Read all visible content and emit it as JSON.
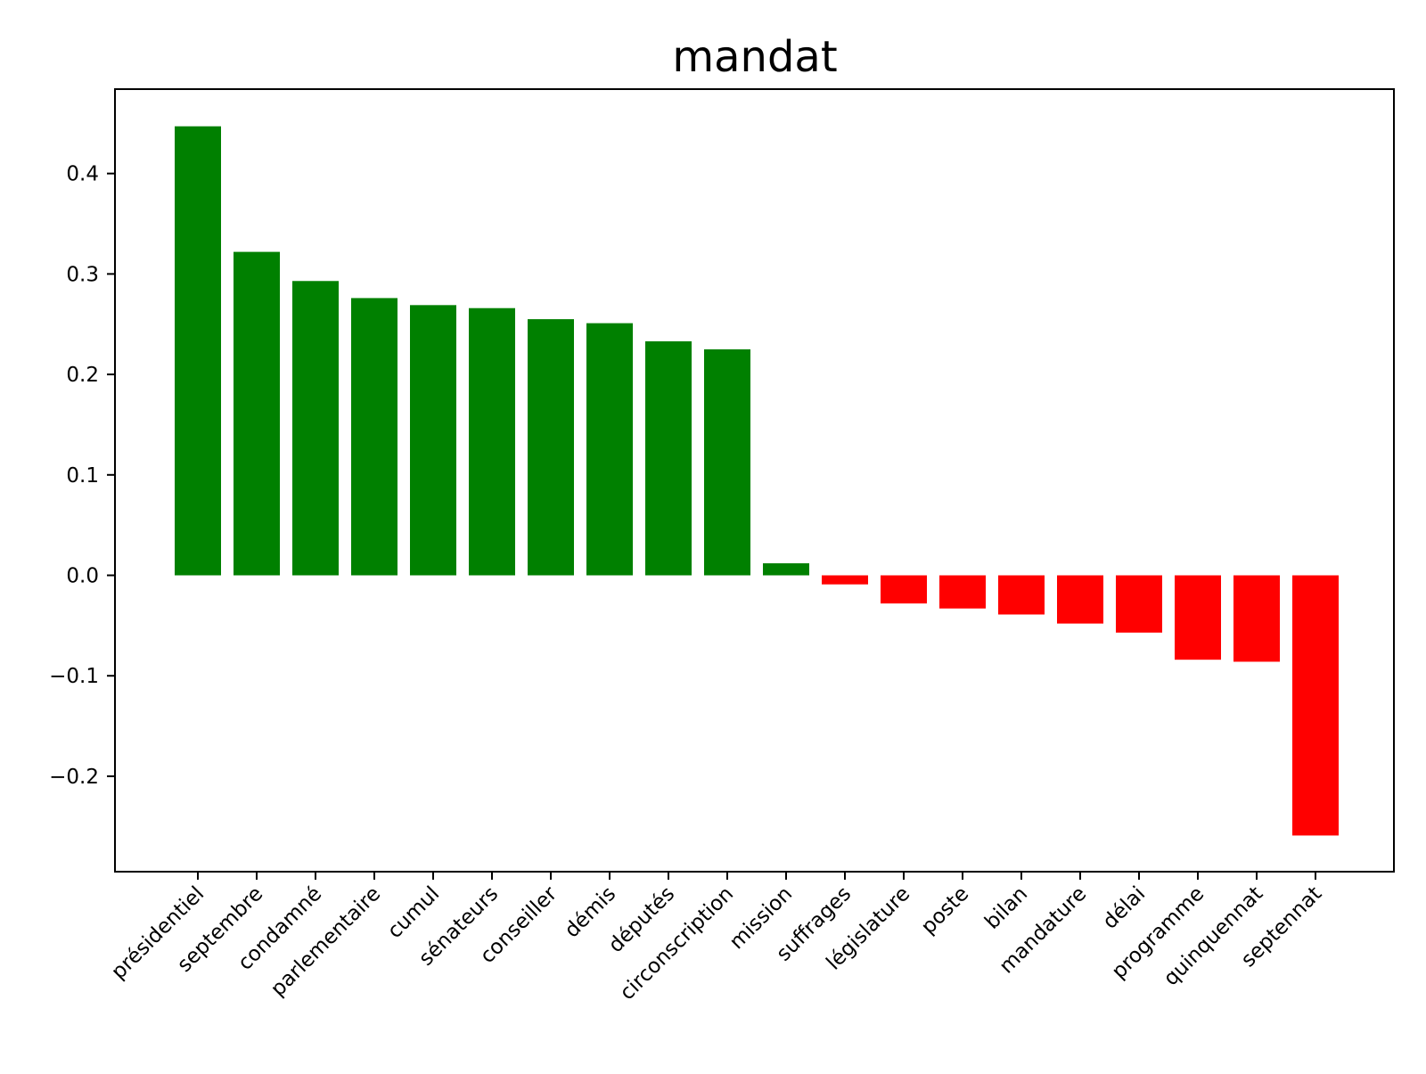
{
  "chart_data": {
    "type": "bar",
    "title": "mandat",
    "xlabel": "",
    "ylabel": "",
    "categories": [
      "présidentiel",
      "septembre",
      "condamné",
      "parlementaire",
      "cumul",
      "sénateurs",
      "conseiller",
      "démis",
      "députés",
      "circonscription",
      "mission",
      "suffrages",
      "législature",
      "poste",
      "bilan",
      "mandature",
      "délai",
      "programme",
      "quinquennat",
      "septennat"
    ],
    "values": [
      0.447,
      0.322,
      0.293,
      0.276,
      0.269,
      0.266,
      0.255,
      0.251,
      0.233,
      0.225,
      0.012,
      -0.009,
      -0.028,
      -0.033,
      -0.039,
      -0.048,
      -0.057,
      -0.084,
      -0.086,
      -0.259
    ],
    "ylim": [
      -0.295,
      0.484
    ],
    "yticks": [
      -0.2,
      -0.1,
      0.0,
      0.1,
      0.2,
      0.3,
      0.4
    ],
    "ytick_labels": [
      "−0.2",
      "−0.1",
      "0.0",
      "0.1",
      "0.2",
      "0.3",
      "0.4"
    ],
    "grid": false,
    "legend": "none",
    "colors": {
      "positive": "#008000",
      "negative": "#ff0000"
    }
  }
}
